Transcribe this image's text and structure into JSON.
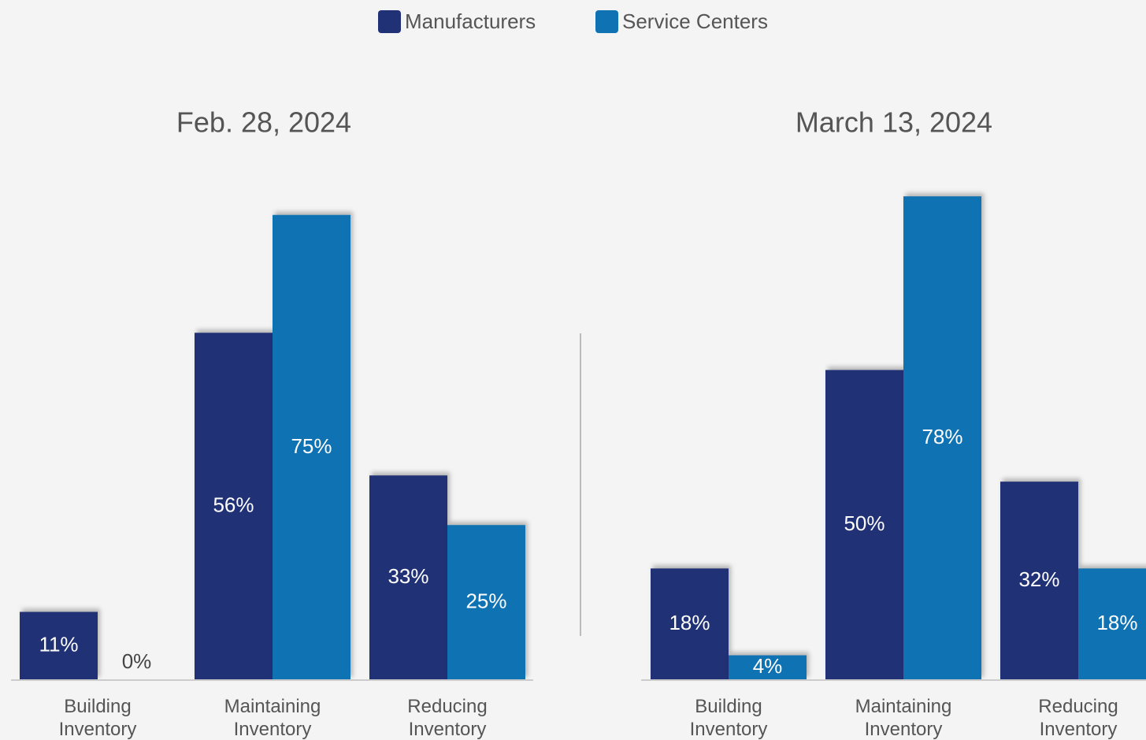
{
  "chart_data": [
    {
      "type": "bar",
      "title": "Feb. 28, 2024",
      "categories": [
        "Building Inventory",
        "Maintaining Inventory",
        "Reducing Inventory"
      ],
      "series": [
        {
          "name": "Manufacturers",
          "color": "#213176",
          "values": [
            11,
            56,
            33
          ],
          "value_labels": [
            "11%",
            "56%",
            "33%"
          ]
        },
        {
          "name": "Service Centers",
          "color": "#0f72b2",
          "values": [
            0,
            75,
            25
          ],
          "value_labels": [
            "0%",
            "75%",
            "25%"
          ]
        }
      ]
    },
    {
      "type": "bar",
      "title": "March 13, 2024",
      "categories": [
        "Building Inventory",
        "Maintaining Inventory",
        "Reducing Inventory"
      ],
      "series": [
        {
          "color": "#213176",
          "values": [
            18,
            50,
            32
          ],
          "value_labels": [
            "18%",
            "50%",
            "32%"
          ]
        },
        {
          "color": "#0f72b2",
          "values": [
            4,
            78,
            18
          ],
          "value_labels": [
            "4%",
            "78%",
            "18%"
          ]
        }
      ]
    }
  ]
}
